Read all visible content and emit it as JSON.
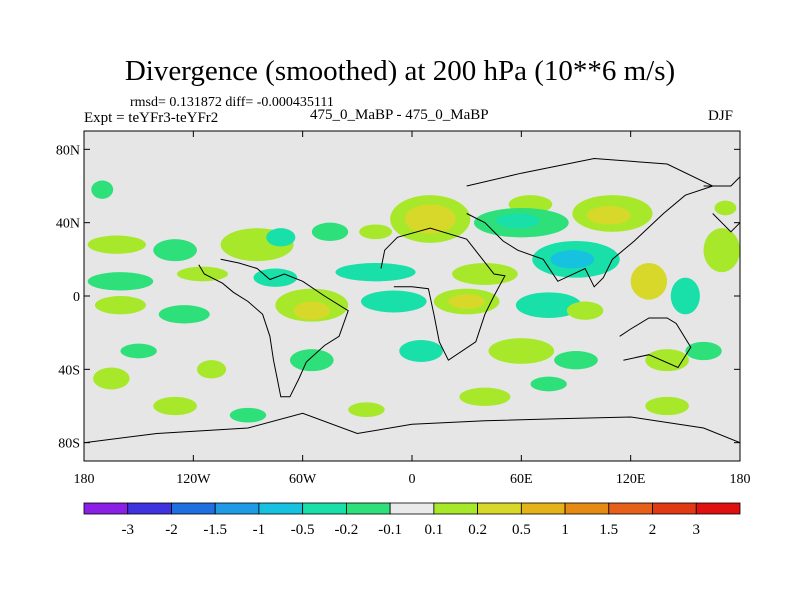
{
  "chart_data": {
    "type": "heatmap",
    "title": "Divergence (smoothed) at 200 hPa (10**6 m/s)",
    "subtitle_stats": "rmsd= 0.131872 diff= -0.000435111",
    "left_label": "Expt = teYFr3-teYFr2",
    "center_label": "475_0_MaBP - 475_0_MaBP",
    "right_label": "DJF",
    "x_ticks": [
      {
        "lon": -180,
        "label": "180"
      },
      {
        "lon": -120,
        "label": "120W"
      },
      {
        "lon": -60,
        "label": "60W"
      },
      {
        "lon": 0,
        "label": "0"
      },
      {
        "lon": 60,
        "label": "60E"
      },
      {
        "lon": 120,
        "label": "120E"
      },
      {
        "lon": 180,
        "label": "180"
      }
    ],
    "y_ticks": [
      {
        "lat": 80,
        "label": "80N"
      },
      {
        "lat": 40,
        "label": "40N"
      },
      {
        "lat": 0,
        "label": "0"
      },
      {
        "lat": -40,
        "label": "40S"
      },
      {
        "lat": -80,
        "label": "80S"
      }
    ],
    "xlim": [
      -180,
      180
    ],
    "ylim": [
      -90,
      90
    ],
    "colorbar": {
      "levels": [
        "-3",
        "-2",
        "-1.5",
        "-1",
        "-0.5",
        "-0.2",
        "-0.1",
        "0.1",
        "0.2",
        "0.5",
        "1",
        "1.5",
        "2",
        "3"
      ],
      "colors": [
        "#8a20e6",
        "#3f33e0",
        "#1f6fe0",
        "#1f9be6",
        "#17c1e0",
        "#19e0a8",
        "#2ee07a",
        "#eaeaea",
        "#a8e82a",
        "#d8d82a",
        "#e6b21a",
        "#e68a14",
        "#e6601a",
        "#e03a14",
        "#e01010"
      ]
    },
    "field_blobs": [
      {
        "lon": -170,
        "lat": 58,
        "rx": 6,
        "ry": 5,
        "cat": 6
      },
      {
        "lon": -162,
        "lat": 28,
        "rx": 16,
        "ry": 5,
        "cat": 8
      },
      {
        "lon": -130,
        "lat": 25,
        "rx": 12,
        "ry": 6,
        "cat": 6
      },
      {
        "lon": -85,
        "lat": 28,
        "rx": 20,
        "ry": 9,
        "cat": 8
      },
      {
        "lon": -72,
        "lat": 32,
        "rx": 8,
        "ry": 5,
        "cat": 5
      },
      {
        "lon": -45,
        "lat": 35,
        "rx": 10,
        "ry": 5,
        "cat": 6
      },
      {
        "lon": -20,
        "lat": 35,
        "rx": 9,
        "ry": 4,
        "cat": 8
      },
      {
        "lon": 10,
        "lat": 42,
        "rx": 22,
        "ry": 13,
        "cat": 8
      },
      {
        "lon": 10,
        "lat": 42,
        "rx": 14,
        "ry": 8,
        "cat": 9
      },
      {
        "lon": 65,
        "lat": 50,
        "rx": 12,
        "ry": 5,
        "cat": 8
      },
      {
        "lon": 60,
        "lat": 40,
        "rx": 26,
        "ry": 8,
        "cat": 6
      },
      {
        "lon": 58,
        "lat": 41,
        "rx": 12,
        "ry": 4,
        "cat": 5
      },
      {
        "lon": 110,
        "lat": 45,
        "rx": 22,
        "ry": 10,
        "cat": 8
      },
      {
        "lon": 108,
        "lat": 44,
        "rx": 12,
        "ry": 5,
        "cat": 9
      },
      {
        "lon": 170,
        "lat": 25,
        "rx": 10,
        "ry": 12,
        "cat": 8
      },
      {
        "lon": 172,
        "lat": 48,
        "rx": 6,
        "ry": 4,
        "cat": 8
      },
      {
        "lon": -160,
        "lat": 8,
        "rx": 18,
        "ry": 5,
        "cat": 6
      },
      {
        "lon": -115,
        "lat": 12,
        "rx": 14,
        "ry": 4,
        "cat": 8
      },
      {
        "lon": -75,
        "lat": 10,
        "rx": 12,
        "ry": 5,
        "cat": 5
      },
      {
        "lon": -20,
        "lat": 13,
        "rx": 22,
        "ry": 5,
        "cat": 5
      },
      {
        "lon": 40,
        "lat": 12,
        "rx": 18,
        "ry": 6,
        "cat": 8
      },
      {
        "lon": 90,
        "lat": 20,
        "rx": 24,
        "ry": 10,
        "cat": 5
      },
      {
        "lon": 88,
        "lat": 20,
        "rx": 12,
        "ry": 5,
        "cat": 4
      },
      {
        "lon": 130,
        "lat": 8,
        "rx": 10,
        "ry": 10,
        "cat": 9
      },
      {
        "lon": 150,
        "lat": 0,
        "rx": 8,
        "ry": 10,
        "cat": 5
      },
      {
        "lon": -160,
        "lat": -5,
        "rx": 14,
        "ry": 5,
        "cat": 8
      },
      {
        "lon": -125,
        "lat": -10,
        "rx": 14,
        "ry": 5,
        "cat": 6
      },
      {
        "lon": -55,
        "lat": -5,
        "rx": 20,
        "ry": 9,
        "cat": 8
      },
      {
        "lon": -55,
        "lat": -8,
        "rx": 10,
        "ry": 5,
        "cat": 9
      },
      {
        "lon": -10,
        "lat": -3,
        "rx": 18,
        "ry": 6,
        "cat": 5
      },
      {
        "lon": 30,
        "lat": -3,
        "rx": 18,
        "ry": 7,
        "cat": 8
      },
      {
        "lon": 30,
        "lat": -3,
        "rx": 10,
        "ry": 4,
        "cat": 9
      },
      {
        "lon": 75,
        "lat": -5,
        "rx": 18,
        "ry": 7,
        "cat": 5
      },
      {
        "lon": 95,
        "lat": -8,
        "rx": 10,
        "ry": 5,
        "cat": 8
      },
      {
        "lon": -150,
        "lat": -30,
        "rx": 10,
        "ry": 4,
        "cat": 6
      },
      {
        "lon": -165,
        "lat": -45,
        "rx": 10,
        "ry": 6,
        "cat": 8
      },
      {
        "lon": -110,
        "lat": -40,
        "rx": 8,
        "ry": 5,
        "cat": 8
      },
      {
        "lon": -55,
        "lat": -35,
        "rx": 12,
        "ry": 6,
        "cat": 6
      },
      {
        "lon": 5,
        "lat": -30,
        "rx": 12,
        "ry": 6,
        "cat": 5
      },
      {
        "lon": 60,
        "lat": -30,
        "rx": 18,
        "ry": 7,
        "cat": 8
      },
      {
        "lon": 90,
        "lat": -35,
        "rx": 12,
        "ry": 5,
        "cat": 6
      },
      {
        "lon": 140,
        "lat": -35,
        "rx": 12,
        "ry": 6,
        "cat": 8
      },
      {
        "lon": 160,
        "lat": -30,
        "rx": 10,
        "ry": 5,
        "cat": 6
      },
      {
        "lon": -130,
        "lat": -60,
        "rx": 12,
        "ry": 5,
        "cat": 8
      },
      {
        "lon": -90,
        "lat": -65,
        "rx": 10,
        "ry": 4,
        "cat": 6
      },
      {
        "lon": -25,
        "lat": -62,
        "rx": 10,
        "ry": 4,
        "cat": 8
      },
      {
        "lon": 40,
        "lat": -55,
        "rx": 14,
        "ry": 5,
        "cat": 8
      },
      {
        "lon": 75,
        "lat": -48,
        "rx": 10,
        "ry": 4,
        "cat": 6
      },
      {
        "lon": 140,
        "lat": -60,
        "rx": 12,
        "ry": 5,
        "cat": 8
      }
    ],
    "coastlines": [
      [
        [
          -117,
          17
        ],
        [
          -114,
          12
        ],
        [
          -110,
          10
        ],
        [
          -104,
          7
        ],
        [
          -98,
          2
        ],
        [
          -90,
          -3
        ],
        [
          -82,
          -10
        ],
        [
          -78,
          -22
        ],
        [
          -76,
          -35
        ],
        [
          -74,
          -45
        ],
        [
          -72,
          -55
        ],
        [
          -67,
          -55
        ],
        [
          -62,
          -45
        ],
        [
          -58,
          -36
        ],
        [
          -48,
          -27
        ],
        [
          -40,
          -22
        ],
        [
          -35,
          -8
        ],
        [
          -48,
          0
        ],
        [
          -60,
          8
        ],
        [
          -70,
          12
        ],
        [
          -78,
          9
        ],
        [
          -85,
          15
        ],
        [
          -95,
          18
        ],
        [
          -105,
          20
        ]
      ],
      [
        [
          -17,
          15
        ],
        [
          -15,
          25
        ],
        [
          -8,
          32
        ],
        [
          10,
          37
        ],
        [
          30,
          31
        ],
        [
          45,
          12
        ],
        [
          51,
          11
        ],
        [
          45,
          0
        ],
        [
          40,
          -10
        ],
        [
          35,
          -25
        ],
        [
          20,
          -35
        ],
        [
          15,
          -25
        ],
        [
          12,
          -10
        ],
        [
          9,
          4
        ],
        [
          0,
          5
        ],
        [
          -10,
          5
        ]
      ],
      [
        [
          30,
          60
        ],
        [
          60,
          67
        ],
        [
          100,
          75
        ],
        [
          140,
          72
        ],
        [
          165,
          60
        ],
        [
          150,
          55
        ],
        [
          138,
          45
        ],
        [
          122,
          30
        ],
        [
          110,
          20
        ],
        [
          105,
          10
        ],
        [
          100,
          5
        ],
        [
          95,
          15
        ],
        [
          80,
          8
        ],
        [
          72,
          20
        ],
        [
          58,
          25
        ],
        [
          50,
          30
        ],
        [
          40,
          40
        ],
        [
          30,
          45
        ]
      ],
      [
        [
          114,
          -22
        ],
        [
          120,
          -18
        ],
        [
          130,
          -12
        ],
        [
          140,
          -12
        ],
        [
          145,
          -15
        ],
        [
          153,
          -28
        ],
        [
          146,
          -39
        ],
        [
          130,
          -32
        ],
        [
          116,
          -35
        ]
      ],
      [
        [
          160,
          60
        ],
        [
          175,
          60
        ],
        [
          180,
          65
        ],
        [
          180,
          40
        ],
        [
          175,
          35
        ],
        [
          165,
          45
        ]
      ],
      [
        [
          -180,
          -80
        ],
        [
          -140,
          -75
        ],
        [
          -90,
          -72
        ],
        [
          -60,
          -64
        ],
        [
          -30,
          -75
        ],
        [
          0,
          -70
        ],
        [
          40,
          -68
        ],
        [
          80,
          -67
        ],
        [
          120,
          -66
        ],
        [
          160,
          -72
        ],
        [
          180,
          -80
        ]
      ]
    ]
  }
}
